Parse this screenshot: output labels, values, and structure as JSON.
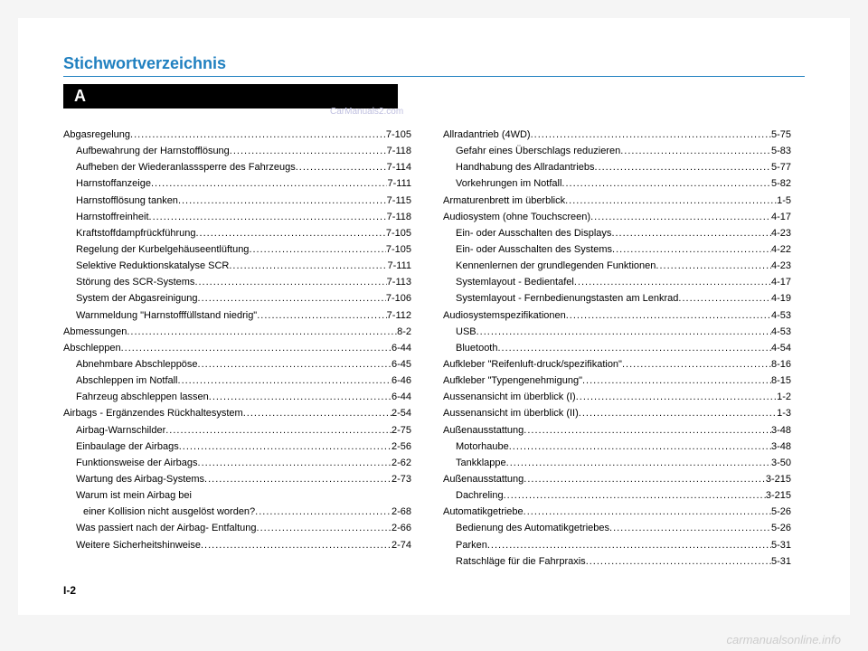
{
  "header": {
    "title": "Stichwortverzeichnis",
    "letter": "A",
    "watermark": "CarManuals2.com"
  },
  "leftColumn": [
    {
      "label": "Abgasregelung",
      "page": "7-105",
      "indent": false
    },
    {
      "label": "Aufbewahrung der Harnstofflösung",
      "page": "7-118",
      "indent": true
    },
    {
      "label": "Aufheben der Wiederanlasssperre des Fahrzeugs",
      "page": "7-114",
      "indent": true
    },
    {
      "label": "Harnstoffanzeige",
      "page": "7-111",
      "indent": true
    },
    {
      "label": "Harnstofflösung tanken",
      "page": "7-115",
      "indent": true
    },
    {
      "label": "Harnstoffreinheit",
      "page": "7-118",
      "indent": true
    },
    {
      "label": "Kraftstoffdampfrückführung",
      "page": "7-105",
      "indent": true
    },
    {
      "label": "Regelung der Kurbelgehäuseentlüftung",
      "page": "7-105",
      "indent": true
    },
    {
      "label": "Selektive Reduktionskatalyse SCR",
      "page": "7-111",
      "indent": true
    },
    {
      "label": "Störung des SCR-Systems",
      "page": "7-113",
      "indent": true
    },
    {
      "label": "System der Abgasreinigung",
      "page": "7-106",
      "indent": true
    },
    {
      "label": "Warnmeldung \"Harnstofffüllstand niedrig\"",
      "page": "7-112",
      "indent": true
    },
    {
      "label": "Abmessungen",
      "page": "8-2",
      "indent": false
    },
    {
      "label": "Abschleppen",
      "page": "6-44",
      "indent": false
    },
    {
      "label": "Abnehmbare Abschleppöse",
      "page": "6-45",
      "indent": true
    },
    {
      "label": "Abschleppen im Notfall",
      "page": "6-46",
      "indent": true
    },
    {
      "label": "Fahrzeug abschleppen lassen",
      "page": "6-44",
      "indent": true
    },
    {
      "label": "Airbags - Ergänzendes Rückhaltesystem",
      "page": "2-54",
      "indent": false
    },
    {
      "label": "Airbag-Warnschilder",
      "page": "2-75",
      "indent": true
    },
    {
      "label": "Einbaulage der Airbags",
      "page": "2-56",
      "indent": true
    },
    {
      "label": "Funktionsweise der Airbags",
      "page": "2-62",
      "indent": true
    },
    {
      "label": "Wartung des Airbag-Systems",
      "page": "2-73",
      "indent": true
    },
    {
      "label": "Warum ist mein Airbag bei",
      "page": "",
      "indent": true,
      "nodots": true
    },
    {
      "label": "einer Kollision nicht ausgelöst worden?",
      "page": "2-68",
      "indent": true,
      "extraIndent": true
    },
    {
      "label": "Was passiert nach der Airbag- Entfaltung",
      "page": "2-66",
      "indent": true
    },
    {
      "label": "Weitere Sicherheitshinweise",
      "page": "2-74",
      "indent": true
    }
  ],
  "rightColumn": [
    {
      "label": "Allradantrieb (4WD)",
      "page": "5-75",
      "indent": false
    },
    {
      "label": "Gefahr eines Überschlags reduzieren",
      "page": "5-83",
      "indent": true
    },
    {
      "label": "Handhabung des Allradantriebs",
      "page": "5-77",
      "indent": true
    },
    {
      "label": "Vorkehrungen im Notfall",
      "page": "5-82",
      "indent": true
    },
    {
      "label": "Armaturenbrett im überblick",
      "page": "1-5",
      "indent": false
    },
    {
      "label": "Audiosystem (ohne Touchscreen)",
      "page": "4-17",
      "indent": false
    },
    {
      "label": "Ein- oder Ausschalten des Displays",
      "page": "4-23",
      "indent": true
    },
    {
      "label": "Ein- oder Ausschalten des Systems",
      "page": "4-22",
      "indent": true
    },
    {
      "label": "Kennenlernen der grundlegenden Funktionen",
      "page": "4-23",
      "indent": true
    },
    {
      "label": "Systemlayout - Bedientafel",
      "page": "4-17",
      "indent": true
    },
    {
      "label": "Systemlayout - Fernbedienungstasten am Lenkrad",
      "page": "4-19",
      "indent": true
    },
    {
      "label": "Audiosystemspezifikationen",
      "page": "4-53",
      "indent": false
    },
    {
      "label": "USB",
      "page": "4-53",
      "indent": true
    },
    {
      "label": "Bluetooth",
      "page": "4-54",
      "indent": true
    },
    {
      "label": "Aufkleber \"Reifenluft-druck/spezifikation\"",
      "page": "8-16",
      "indent": false
    },
    {
      "label": "Aufkleber \"Typengenehmigung\"",
      "page": "8-15",
      "indent": false
    },
    {
      "label": "Aussenansicht im überblick (I)",
      "page": "1-2",
      "indent": false
    },
    {
      "label": "Aussenansicht im überblick (II)",
      "page": "1-3",
      "indent": false
    },
    {
      "label": "Außenausstattung",
      "page": "3-48",
      "indent": false
    },
    {
      "label": "Motorhaube",
      "page": "3-48",
      "indent": true
    },
    {
      "label": "Tankklappe",
      "page": "3-50",
      "indent": true
    },
    {
      "label": "Außenausstattung",
      "page": "3-215",
      "indent": false
    },
    {
      "label": "Dachreling",
      "page": "3-215",
      "indent": true
    },
    {
      "label": "Automatikgetriebe",
      "page": "5-26",
      "indent": false
    },
    {
      "label": "Bedienung des Automatikgetriebes",
      "page": "5-26",
      "indent": true
    },
    {
      "label": "Parken",
      "page": "5-31",
      "indent": true
    },
    {
      "label": "Ratschläge für die Fahrpraxis",
      "page": "5-31",
      "indent": true
    }
  ],
  "pageNumber": "I-2",
  "footerWatermark": "carmanualsonline.info"
}
